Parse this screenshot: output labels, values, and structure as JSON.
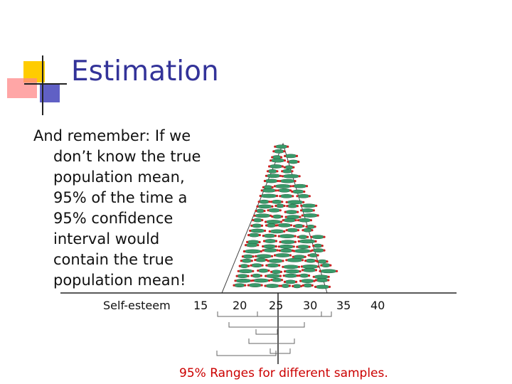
{
  "title": "Estimation",
  "body_lines": [
    "And remember:  If we",
    "don’t know the true",
    "population mean,",
    "95% of the time a",
    "95% confidence",
    "interval would",
    "contain the true",
    "population mean!"
  ],
  "axis": {
    "label": "Self-esteem",
    "ticks": [
      "15",
      "20",
      "25",
      "30",
      "35",
      "40"
    ]
  },
  "caption": "95% Ranges for different samples.",
  "colors": {
    "title": "#333399",
    "caption": "#cc0000",
    "pill_fill": "#3a9a6a",
    "dot": "#cc2222",
    "accent_yellow": "#ffcc00",
    "accent_red": "#ff6666",
    "accent_blue": "#3333aa"
  }
}
